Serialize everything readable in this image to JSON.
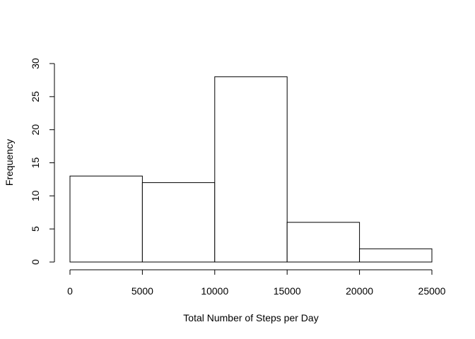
{
  "chart_data": {
    "type": "bar",
    "title": "",
    "xlabel": "Total Number of Steps per Day",
    "ylabel": "Frequency",
    "bins": [
      {
        "from": 0,
        "to": 5000,
        "count": 13
      },
      {
        "from": 5000,
        "to": 10000,
        "count": 12
      },
      {
        "from": 10000,
        "to": 15000,
        "count": 28
      },
      {
        "from": 15000,
        "to": 20000,
        "count": 6
      },
      {
        "from": 20000,
        "to": 25000,
        "count": 2
      }
    ],
    "xlim": [
      0,
      25000
    ],
    "ylim": [
      0,
      30
    ],
    "x_ticks": [
      "0",
      "5000",
      "10000",
      "15000",
      "20000",
      "25000"
    ],
    "y_ticks": [
      "0",
      "5",
      "10",
      "15",
      "20",
      "25",
      "30"
    ],
    "grid": false,
    "legend": "none",
    "bar_fill": "#ffffff",
    "bar_stroke": "#000000"
  }
}
